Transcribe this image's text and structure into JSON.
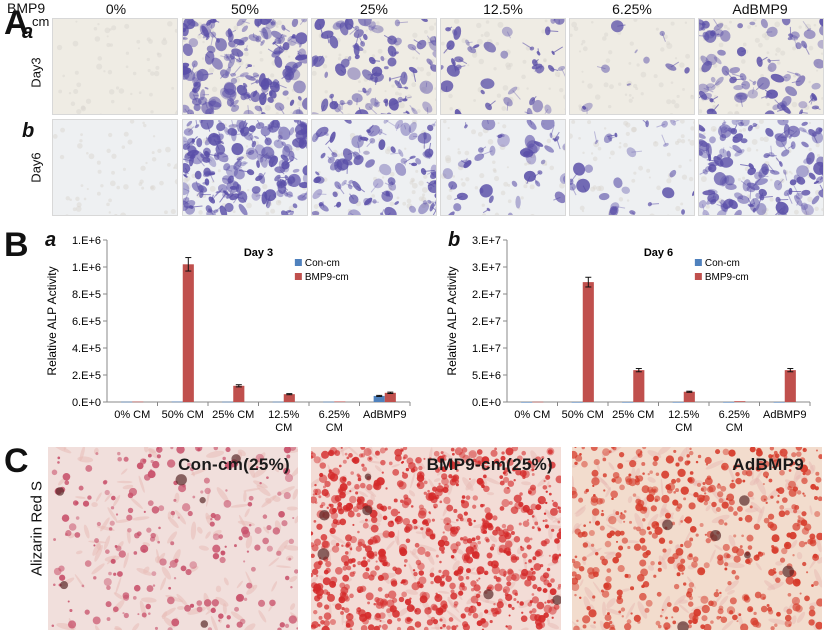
{
  "panel_a": {
    "letter": "A",
    "header_bmp9": "BMP9",
    "header_cm": "cm",
    "columns": [
      "0%",
      "50%",
      "25%",
      "12.5%",
      "6.25%",
      "AdBMP9"
    ],
    "rows": [
      {
        "letter": "a",
        "label": "Day3",
        "density": [
          0.0,
          0.85,
          0.45,
          0.22,
          0.06,
          0.45
        ]
      },
      {
        "letter": "b",
        "label": "Day6",
        "density": [
          0.0,
          1.0,
          0.5,
          0.25,
          0.15,
          0.7
        ]
      }
    ],
    "stain_color": "#5a4fa8",
    "background_color": "#efece4"
  },
  "panel_b": {
    "letter": "B",
    "charts": [
      {
        "letter": "a"
      },
      {
        "letter": "b"
      }
    ]
  },
  "chart_data": [
    {
      "type": "bar",
      "title": "Day 3",
      "ylabel": "Relative ALP Activity",
      "xlabel": "",
      "categories": [
        "0% CM",
        "50% CM",
        "25% CM",
        "12.5% CM",
        "6.25% CM",
        "AdBMP9"
      ],
      "category_lines": [
        [
          "0% CM"
        ],
        [
          "50% CM"
        ],
        [
          "25% CM"
        ],
        [
          "12.5%",
          "CM"
        ],
        [
          "6.25%",
          "CM"
        ],
        [
          "AdBMP9"
        ]
      ],
      "ylim": [
        0,
        1200000
      ],
      "y_ticks": [
        0,
        200000,
        400000,
        600000,
        800000,
        1000000,
        1200000
      ],
      "y_tick_labels": [
        "0.E+0",
        "2.E+5",
        "4.E+5",
        "6.E+5",
        "8.E+5",
        "1.E+6",
        "1.E+6"
      ],
      "legend_position": "top-right",
      "series": [
        {
          "name": "Con-cm",
          "color": "#4f81bd",
          "values": [
            2000,
            3000,
            2000,
            2000,
            2000,
            45000
          ],
          "errors": [
            0,
            0,
            0,
            0,
            0,
            4000
          ]
        },
        {
          "name": "BMP9-cm",
          "color": "#c0504d",
          "values": [
            3000,
            1020000,
            120000,
            58000,
            4000,
            68000
          ],
          "errors": [
            0,
            50000,
            8000,
            4000,
            0,
            5000
          ]
        }
      ]
    },
    {
      "type": "bar",
      "title": "Day 6",
      "ylabel": "Relative ALP Activity",
      "xlabel": "",
      "categories": [
        "0% CM",
        "50% CM",
        "25% CM",
        "12.5% CM",
        "6.25% CM",
        "AdBMP9"
      ],
      "category_lines": [
        [
          "0% CM"
        ],
        [
          "50% CM"
        ],
        [
          "25% CM"
        ],
        [
          "12.5%",
          "CM"
        ],
        [
          "6.25%",
          "CM"
        ],
        [
          "AdBMP9"
        ]
      ],
      "ylim": [
        0,
        30000000
      ],
      "y_ticks": [
        0,
        5000000,
        10000000,
        15000000,
        20000000,
        25000000,
        30000000
      ],
      "y_tick_labels": [
        "0.E+0",
        "5.E+6",
        "1.E+7",
        "2.E+7",
        "2.E+7",
        "3.E+7",
        "3.E+7"
      ],
      "legend_position": "top-right",
      "series": [
        {
          "name": "Con-cm",
          "color": "#4f81bd",
          "values": [
            0,
            0,
            0,
            0,
            0,
            0
          ],
          "errors": [
            0,
            0,
            0,
            0,
            0,
            0
          ]
        },
        {
          "name": "BMP9-cm",
          "color": "#c0504d",
          "values": [
            50000,
            22200000,
            5900000,
            1900000,
            150000,
            5900000
          ],
          "errors": [
            0,
            900000,
            300000,
            100000,
            0,
            300000
          ]
        }
      ]
    }
  ],
  "panel_c": {
    "letter": "C",
    "ylabel": "Alizarin Red S",
    "photos": [
      {
        "label": "Con-cm(25%)",
        "density": 0.25,
        "bg": "#f1dfdc",
        "stain": "#c8506a"
      },
      {
        "label": "BMP9-cm(25%)",
        "density": 0.95,
        "bg": "#f3dcd6",
        "stain": "#d42a2a"
      },
      {
        "label": "AdBMP9",
        "density": 0.6,
        "bg": "#f2dccd",
        "stain": "#d63a2a"
      }
    ]
  }
}
